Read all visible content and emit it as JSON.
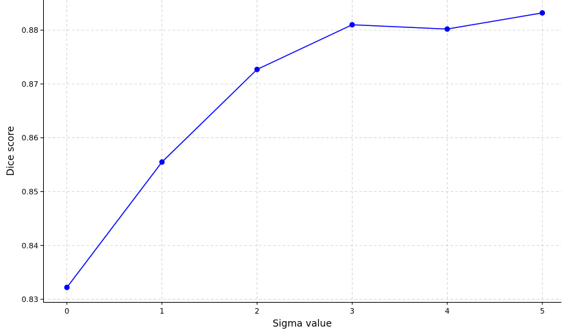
{
  "chart_data": {
    "type": "line",
    "title": "",
    "xlabel": "Sigma value",
    "ylabel": "Dice score",
    "x": [
      0,
      1,
      2,
      3,
      4,
      5
    ],
    "xticks": [
      "0",
      "1",
      "2",
      "3",
      "4",
      "5"
    ],
    "yticks": [
      "0.83",
      "0.84",
      "0.85",
      "0.86",
      "0.87",
      "0.88"
    ],
    "xlim": [
      -0.25,
      5.2
    ],
    "ylim": [
      0.8295,
      0.8856
    ],
    "grid": true,
    "series": [
      {
        "values": [
          0.8322,
          0.8555,
          0.8727,
          0.881,
          0.8802,
          0.8832
        ],
        "color": "#0000ff",
        "marker": "circle"
      }
    ]
  }
}
